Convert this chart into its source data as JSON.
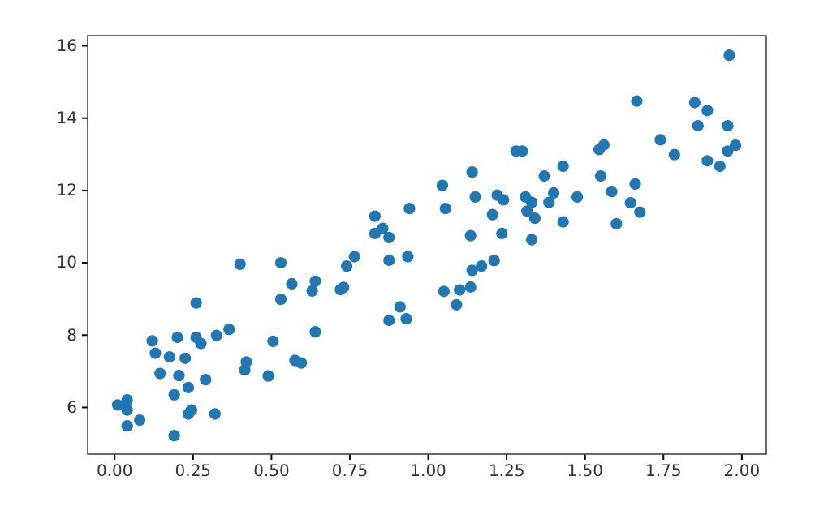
{
  "chart_data": {
    "type": "scatter",
    "marker": "circle",
    "grid": false,
    "xlim": [
      -0.086,
      2.078
    ],
    "ylim": [
      4.71,
      16.28
    ],
    "xticks": [
      {
        "value": 0,
        "label": "0.00"
      },
      {
        "value": 0.25,
        "label": "0.25"
      },
      {
        "value": 0.5,
        "label": "0.50"
      },
      {
        "value": 0.75,
        "label": "0.75"
      },
      {
        "value": 1,
        "label": "1.00"
      },
      {
        "value": 1.25,
        "label": "1.25"
      },
      {
        "value": 1.5,
        "label": "1.50"
      },
      {
        "value": 1.75,
        "label": "1.75"
      },
      {
        "value": 2,
        "label": "2.00"
      }
    ],
    "yticks": [
      6,
      8,
      10,
      12,
      14,
      16
    ],
    "series": [
      {
        "color": "#1f77b4",
        "x": [
          0.01,
          0.04,
          0.04,
          0.04,
          0.08,
          0.12,
          0.13,
          0.145,
          0.175,
          0.19,
          0.19,
          0.2,
          0.205,
          0.225,
          0.235,
          0.235,
          0.245,
          0.26,
          0.26,
          0.275,
          0.29,
          0.32,
          0.325,
          0.365,
          0.4,
          0.42,
          0.415,
          0.49,
          0.505,
          0.53,
          0.53,
          0.565,
          0.575,
          0.595,
          0.63,
          0.64,
          0.64,
          0.72,
          0.73,
          0.74,
          0.765,
          0.83,
          0.83,
          0.855,
          0.875,
          0.875,
          0.875,
          0.91,
          0.93,
          0.935,
          0.94,
          1.045,
          1.055,
          1.05,
          1.09,
          1.1,
          1.135,
          1.135,
          1.14,
          1.14,
          1.15,
          1.17,
          1.205,
          1.21,
          1.22,
          1.24,
          1.235,
          1.28,
          1.3,
          1.31,
          1.315,
          1.33,
          1.34,
          1.33,
          1.37,
          1.385,
          1.4,
          1.43,
          1.43,
          1.475,
          1.545,
          1.56,
          1.55,
          1.585,
          1.6,
          1.645,
          1.66,
          1.665,
          1.675,
          1.74,
          1.785,
          1.85,
          1.86,
          1.89,
          1.89,
          1.93,
          1.955,
          1.955,
          1.98,
          1.96
        ],
        "values": [
          6.07,
          6.21,
          5.93,
          5.49,
          5.65,
          7.84,
          7.5,
          6.94,
          7.4,
          6.35,
          5.22,
          7.94,
          6.88,
          7.36,
          6.55,
          5.82,
          5.93,
          8.89,
          7.94,
          7.77,
          6.77,
          5.82,
          7.99,
          8.16,
          9.96,
          7.26,
          7.04,
          6.87,
          7.83,
          10,
          8.99,
          9.42,
          7.3,
          7.23,
          9.22,
          9.49,
          8.09,
          9.26,
          9.32,
          9.91,
          10.17,
          11.29,
          10.81,
          10.95,
          10.7,
          10.07,
          8.41,
          8.78,
          8.45,
          10.17,
          11.5,
          12.14,
          11.5,
          9.21,
          8.84,
          9.25,
          9.33,
          10.75,
          12.51,
          9.79,
          11.82,
          9.91,
          11.33,
          10.06,
          11.87,
          11.74,
          10.81,
          13.09,
          13.09,
          11.82,
          11.43,
          11.67,
          11.23,
          10.64,
          12.4,
          11.67,
          11.93,
          12.67,
          11.13,
          11.82,
          13.13,
          13.26,
          12.4,
          11.97,
          11.08,
          11.66,
          12.18,
          14.47,
          11.4,
          13.4,
          12.99,
          14.43,
          13.79,
          14.21,
          12.82,
          12.67,
          13.79,
          13.09,
          13.25,
          15.74
        ]
      }
    ]
  }
}
